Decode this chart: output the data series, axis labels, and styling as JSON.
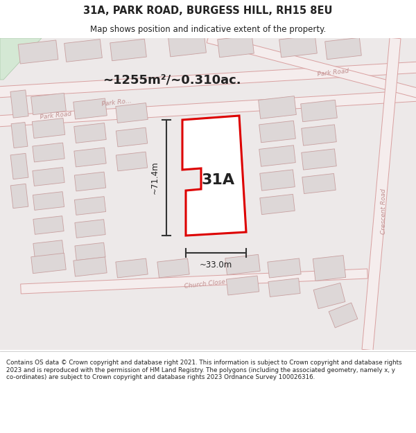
{
  "title_line1": "31A, PARK ROAD, BURGESS HILL, RH15 8EU",
  "title_line2": "Map shows position and indicative extent of the property.",
  "area_text": "~1255m²/~0.310ac.",
  "label_31A": "31A",
  "dim_height": "~71.4m",
  "dim_width": "~33.0m",
  "footer_text": "Contains OS data © Crown copyright and database right 2021. This information is subject to Crown copyright and database rights 2023 and is reproduced with the permission of HM Land Registry. The polygons (including the associated geometry, namely x, y co-ordinates) are subject to Crown copyright and database rights 2023 Ordnance Survey 100026316.",
  "map_bg": "#ede9e9",
  "road_fill": "#f5eded",
  "road_edge": "#d9a0a0",
  "bld_fill": "#ddd7d7",
  "bld_edge": "#c8a0a0",
  "highlight_fill": "#ffffff",
  "highlight_edge": "#dd0000",
  "text_color": "#222222",
  "dim_color": "#333333",
  "road_text_color": "#c09090",
  "tilt_deg": 6.5,
  "green_fill": "#d4e8d4",
  "green_edge": "#a8c8a8"
}
